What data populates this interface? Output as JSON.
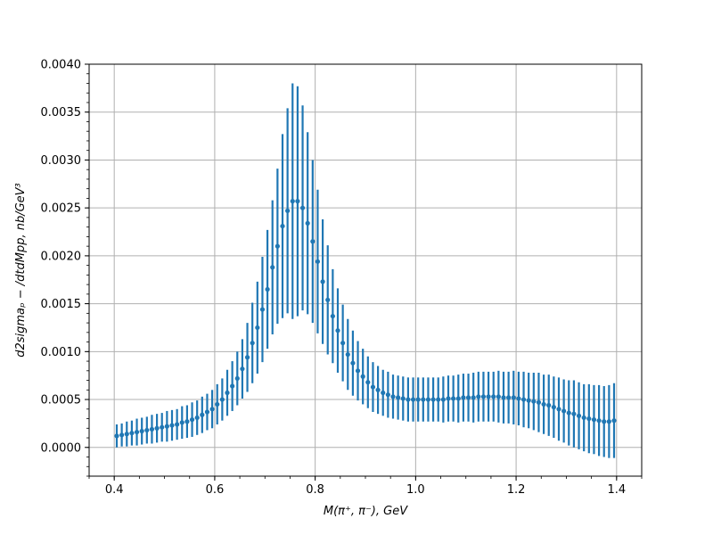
{
  "chart_data": {
    "type": "scatter",
    "xlabel": "M(π⁺, π⁻), GeV",
    "ylabel": "d2sigmaₚ − /dtdMpp, nb/GeV³",
    "xlim": [
      0.35,
      1.45
    ],
    "ylim": [
      -0.0003,
      0.004
    ],
    "xticks": [
      0.4,
      0.6,
      0.8,
      1.0,
      1.2,
      1.4
    ],
    "xtick_labels": [
      "0.4",
      "0.6",
      "0.8",
      "1.0",
      "1.2",
      "1.4"
    ],
    "yticks": [
      0.0,
      0.0005,
      0.001,
      0.0015,
      0.002,
      0.0025,
      0.003,
      0.0035,
      0.004
    ],
    "ytick_labels": [
      "0.0000",
      "0.0005",
      "0.0010",
      "0.0015",
      "0.0020",
      "0.0025",
      "0.0030",
      "0.0035",
      "0.0040"
    ],
    "grid": true,
    "color": "#1f77b4",
    "series": [
      {
        "x": [
          0.405,
          0.415,
          0.425,
          0.435,
          0.445,
          0.455,
          0.465,
          0.475,
          0.485,
          0.495,
          0.505,
          0.515,
          0.525,
          0.535,
          0.545,
          0.555,
          0.565,
          0.575,
          0.585,
          0.595,
          0.605,
          0.615,
          0.625,
          0.635,
          0.645,
          0.655,
          0.665,
          0.675,
          0.685,
          0.695,
          0.705,
          0.715,
          0.725,
          0.735,
          0.745,
          0.755,
          0.765,
          0.775,
          0.785,
          0.795,
          0.805,
          0.815,
          0.825,
          0.835,
          0.845,
          0.855,
          0.865,
          0.875,
          0.885,
          0.895,
          0.905,
          0.915,
          0.925,
          0.935,
          0.945,
          0.955,
          0.965,
          0.975,
          0.985,
          0.995,
          1.005,
          1.015,
          1.025,
          1.035,
          1.045,
          1.055,
          1.065,
          1.075,
          1.085,
          1.095,
          1.105,
          1.115,
          1.125,
          1.135,
          1.145,
          1.155,
          1.165,
          1.175,
          1.185,
          1.195,
          1.205,
          1.215,
          1.225,
          1.235,
          1.245,
          1.255,
          1.265,
          1.275,
          1.285,
          1.295,
          1.305,
          1.315,
          1.325,
          1.335,
          1.345,
          1.355,
          1.365,
          1.375,
          1.385,
          1.395
        ],
        "y": [
          0.00012,
          0.00013,
          0.00014,
          0.00015,
          0.00016,
          0.00017,
          0.00018,
          0.00019,
          0.0002,
          0.00021,
          0.00022,
          0.00023,
          0.00024,
          0.00026,
          0.00027,
          0.00029,
          0.00031,
          0.00034,
          0.00037,
          0.0004,
          0.00045,
          0.0005,
          0.00057,
          0.00064,
          0.00072,
          0.00082,
          0.00094,
          0.00109,
          0.00125,
          0.00144,
          0.00165,
          0.00188,
          0.0021,
          0.00231,
          0.00247,
          0.00257,
          0.00257,
          0.0025,
          0.00234,
          0.00215,
          0.00194,
          0.00173,
          0.00154,
          0.00137,
          0.00122,
          0.00109,
          0.00097,
          0.00088,
          0.0008,
          0.00074,
          0.00068,
          0.00063,
          0.0006,
          0.00057,
          0.00055,
          0.00053,
          0.00052,
          0.00051,
          0.0005,
          0.0005,
          0.0005,
          0.0005,
          0.0005,
          0.0005,
          0.0005,
          0.0005,
          0.00051,
          0.00051,
          0.00051,
          0.00052,
          0.00052,
          0.00052,
          0.00053,
          0.00053,
          0.00053,
          0.00053,
          0.00053,
          0.00052,
          0.00052,
          0.00052,
          0.00051,
          0.0005,
          0.00049,
          0.00048,
          0.00047,
          0.00045,
          0.00044,
          0.00042,
          0.0004,
          0.00038,
          0.00036,
          0.00035,
          0.00033,
          0.00031,
          0.0003,
          0.00029,
          0.00028,
          0.00027,
          0.00027,
          0.00028
        ],
        "yerr": [
          0.00012,
          0.00012,
          0.00013,
          0.00013,
          0.00014,
          0.00014,
          0.00014,
          0.00015,
          0.00015,
          0.00015,
          0.00016,
          0.00016,
          0.00016,
          0.00017,
          0.00017,
          0.00018,
          0.00018,
          0.00019,
          0.00019,
          0.0002,
          0.00021,
          0.00022,
          0.00024,
          0.00026,
          0.00028,
          0.00031,
          0.00036,
          0.00042,
          0.00048,
          0.00055,
          0.00062,
          0.0007,
          0.00081,
          0.00096,
          0.00107,
          0.00123,
          0.0012,
          0.00107,
          0.00095,
          0.00085,
          0.00075,
          0.00065,
          0.00057,
          0.00049,
          0.00044,
          0.0004,
          0.00037,
          0.00034,
          0.00031,
          0.00029,
          0.00027,
          0.00026,
          0.00025,
          0.00024,
          0.00024,
          0.00023,
          0.00023,
          0.00023,
          0.00023,
          0.00023,
          0.00023,
          0.00023,
          0.00023,
          0.00023,
          0.00023,
          0.00024,
          0.00024,
          0.00024,
          0.00025,
          0.00025,
          0.00025,
          0.00026,
          0.00026,
          0.00026,
          0.00026,
          0.00026,
          0.00027,
          0.00027,
          0.00027,
          0.00028,
          0.00028,
          0.00029,
          0.00029,
          0.0003,
          0.00031,
          0.00031,
          0.00032,
          0.00032,
          0.00033,
          0.00033,
          0.00034,
          0.00035,
          0.00035,
          0.00035,
          0.00036,
          0.00036,
          0.00037,
          0.00037,
          0.00038,
          0.00039
        ]
      }
    ]
  }
}
